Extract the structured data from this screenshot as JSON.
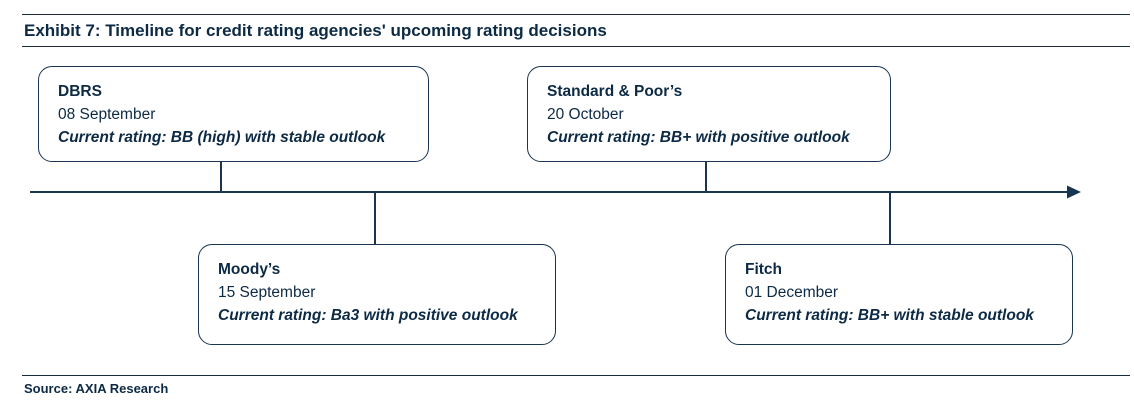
{
  "header": {
    "title": "Exhibit 7: Timeline for credit rating agencies' upcoming rating decisions"
  },
  "events": [
    {
      "agency": "DBRS",
      "date": "08 September",
      "rating": "Current rating: BB (high) with stable outlook"
    },
    {
      "agency": "Moody’s",
      "date": "15 September",
      "rating": "Current rating: Ba3 with positive outlook"
    },
    {
      "agency": "Standard & Poor’s",
      "date": "20 October",
      "rating": "Current rating: BB+ with positive outlook"
    },
    {
      "agency": "Fitch",
      "date": "01 December",
      "rating": "Current rating: BB+ with stable outlook"
    }
  ],
  "footer": {
    "source": "Source: AXIA Research"
  },
  "colors": {
    "text": "#0d2a45",
    "line": "#1a3550"
  }
}
